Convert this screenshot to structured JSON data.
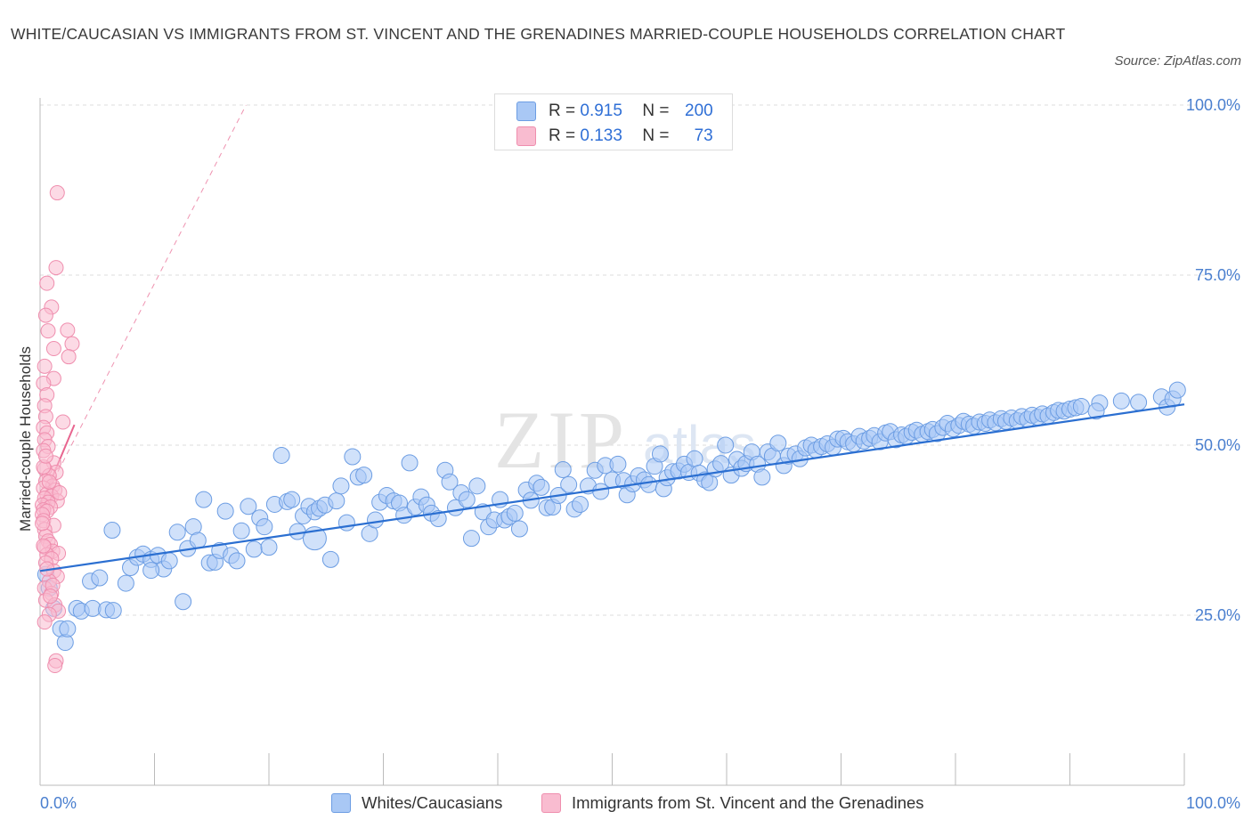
{
  "title": "WHITE/CAUCASIAN VS IMMIGRANTS FROM ST. VINCENT AND THE GRENADINES MARRIED-COUPLE HOUSEHOLDS CORRELATION CHART",
  "source": "Source: ZipAtlas.com",
  "watermark": {
    "main": "ZIP",
    "sub": "atlas"
  },
  "legend": {
    "rows": [
      {
        "r_label": "R = ",
        "r_value": "0.915",
        "n_label": "N = ",
        "n_value": "200"
      },
      {
        "r_label": "R = ",
        "r_value": "0.133",
        "n_label": "N = ",
        "n_value": "73"
      }
    ]
  },
  "bottom_legend": {
    "series1": "Whites/Caucasians",
    "series2": "Immigrants from St. Vincent and the Grenadines"
  },
  "colors": {
    "blue_fill": "#a9c8f5",
    "blue_stroke": "#6c9de3",
    "blue_line": "#2b6fd1",
    "pink_fill": "#f9bcd0",
    "pink_stroke": "#ef8eae",
    "pink_line": "#e8658f",
    "grid": "#dddddd",
    "tick_text": "#4a7fcf"
  },
  "chart_data": {
    "type": "scatter",
    "xlabel": "",
    "ylabel": "Married-couple Households",
    "x_tick_labels": [
      "0.0%",
      "100.0%"
    ],
    "y_tick_labels": [
      "25.0%",
      "50.0%",
      "75.0%",
      "100.0%"
    ],
    "y_ticks": [
      25,
      50,
      75,
      100
    ],
    "xlim": [
      0,
      100
    ],
    "ylim": [
      0,
      100
    ],
    "grid": true,
    "legend_position": "top-center",
    "series": [
      {
        "name": "Whites/Caucasians",
        "r": 0.915,
        "n": 200,
        "trend": {
          "x": [
            0,
            100
          ],
          "y": [
            31.5,
            56
          ]
        },
        "points": [
          [
            0.5,
            31
          ],
          [
            0.8,
            29
          ],
          [
            1.2,
            26
          ],
          [
            1.8,
            23
          ],
          [
            2.2,
            21
          ],
          [
            2.4,
            23
          ],
          [
            3.2,
            26
          ],
          [
            3.6,
            25.6
          ],
          [
            4.4,
            30
          ],
          [
            4.6,
            26
          ],
          [
            5.2,
            30.5
          ],
          [
            5.8,
            25.8
          ],
          [
            6.4,
            25.7
          ],
          [
            6.3,
            37.5
          ],
          [
            7.5,
            29.7
          ],
          [
            7.9,
            32
          ],
          [
            8.5,
            33.5
          ],
          [
            9.0,
            34
          ],
          [
            9.7,
            33.2
          ],
          [
            10.3,
            33.8
          ],
          [
            10.8,
            31.8
          ],
          [
            11.3,
            33
          ],
          [
            12.0,
            37.2
          ],
          [
            12.5,
            27
          ],
          [
            12.9,
            34.8
          ],
          [
            13.4,
            38
          ],
          [
            13.8,
            36
          ],
          [
            14.3,
            42
          ],
          [
            14.8,
            32.7
          ],
          [
            15.3,
            32.8
          ],
          [
            15.7,
            34.5
          ],
          [
            16.2,
            40.3
          ],
          [
            16.7,
            33.8
          ],
          [
            17.2,
            33
          ],
          [
            17.6,
            37.4
          ],
          [
            18.2,
            41
          ],
          [
            18.7,
            34.7
          ],
          [
            19.2,
            39.3
          ],
          [
            19.6,
            38
          ],
          [
            20.0,
            35
          ],
          [
            20.5,
            41.3
          ],
          [
            21.1,
            48.5
          ],
          [
            21.6,
            41.7
          ],
          [
            22.0,
            42
          ],
          [
            22.5,
            37.3
          ],
          [
            23.0,
            39.6
          ],
          [
            23.5,
            41
          ],
          [
            24.0,
            40.2
          ],
          [
            24.4,
            40.7
          ],
          [
            24.9,
            41.2
          ],
          [
            25.4,
            33.2
          ],
          [
            25.9,
            41.8
          ],
          [
            26.3,
            44
          ],
          [
            26.8,
            38.6
          ],
          [
            27.3,
            48.3
          ],
          [
            27.8,
            45.3
          ],
          [
            28.3,
            45.6
          ],
          [
            28.8,
            37
          ],
          [
            29.3,
            39
          ],
          [
            29.7,
            41.6
          ],
          [
            30.3,
            42.6
          ],
          [
            30.9,
            41.8
          ],
          [
            31.4,
            41.5
          ],
          [
            31.8,
            39.7
          ],
          [
            32.3,
            47.4
          ],
          [
            32.8,
            40.9
          ],
          [
            33.3,
            42.4
          ],
          [
            33.8,
            41.2
          ],
          [
            34.2,
            40
          ],
          [
            34.8,
            39.2
          ],
          [
            35.4,
            46.3
          ],
          [
            35.8,
            44.6
          ],
          [
            36.3,
            40.8
          ],
          [
            36.8,
            43
          ],
          [
            37.3,
            42
          ],
          [
            37.7,
            36.3
          ],
          [
            38.2,
            44
          ],
          [
            38.7,
            40.2
          ],
          [
            39.2,
            38
          ],
          [
            39.7,
            39
          ],
          [
            40.2,
            42
          ],
          [
            40.6,
            39
          ],
          [
            41.0,
            39.5
          ],
          [
            41.5,
            40
          ],
          [
            41.9,
            37.7
          ],
          [
            42.5,
            43.4
          ],
          [
            42.9,
            41.9
          ],
          [
            43.4,
            44.4
          ],
          [
            43.8,
            43.8
          ],
          [
            44.3,
            40.8
          ],
          [
            44.8,
            40.9
          ],
          [
            45.3,
            42.6
          ],
          [
            45.7,
            46.4
          ],
          [
            46.2,
            44.2
          ],
          [
            46.7,
            40.6
          ],
          [
            47.2,
            41.3
          ],
          [
            47.9,
            44
          ],
          [
            48.5,
            46.3
          ],
          [
            49.0,
            43.2
          ],
          [
            49.4,
            47
          ],
          [
            50.0,
            44.9
          ],
          [
            50.5,
            47.2
          ],
          [
            51.0,
            44.8
          ],
          [
            51.3,
            42.7
          ],
          [
            51.8,
            44.3
          ],
          [
            52.3,
            45.5
          ],
          [
            52.8,
            44.9
          ],
          [
            53.2,
            44.2
          ],
          [
            53.7,
            46.9
          ],
          [
            54.2,
            48.7
          ],
          [
            54.5,
            43.6
          ],
          [
            54.8,
            45.2
          ],
          [
            55.3,
            46.1
          ],
          [
            55.8,
            46.2
          ],
          [
            56.3,
            47.2
          ],
          [
            56.7,
            46
          ],
          [
            57.2,
            48
          ],
          [
            57.6,
            45.9
          ],
          [
            58.1,
            44.9
          ],
          [
            58.5,
            44.5
          ],
          [
            59.0,
            46.5
          ],
          [
            59.5,
            47.3
          ],
          [
            59.9,
            50
          ],
          [
            60.4,
            45.6
          ],
          [
            60.9,
            47.9
          ],
          [
            61.3,
            46.6
          ],
          [
            61.7,
            47.3
          ],
          [
            62.2,
            49
          ],
          [
            62.7,
            47.2
          ],
          [
            63.1,
            45.3
          ],
          [
            63.6,
            49
          ],
          [
            64.0,
            48.4
          ],
          [
            64.5,
            50.3
          ],
          [
            65.0,
            47
          ],
          [
            65.4,
            48.4
          ],
          [
            66.0,
            48.7
          ],
          [
            66.4,
            48
          ],
          [
            66.9,
            49.6
          ],
          [
            67.4,
            50
          ],
          [
            67.8,
            49.3
          ],
          [
            68.3,
            49.8
          ],
          [
            68.8,
            50.2
          ],
          [
            69.3,
            49.7
          ],
          [
            69.7,
            50.9
          ],
          [
            70.2,
            51
          ],
          [
            70.6,
            50.5
          ],
          [
            71.1,
            50.2
          ],
          [
            71.6,
            51.3
          ],
          [
            72.0,
            50.6
          ],
          [
            72.5,
            51
          ],
          [
            72.9,
            51.4
          ],
          [
            73.4,
            50.5
          ],
          [
            73.9,
            51.8
          ],
          [
            74.3,
            52
          ],
          [
            74.8,
            50.8
          ],
          [
            75.3,
            51.5
          ],
          [
            75.7,
            51.3
          ],
          [
            76.2,
            51.9
          ],
          [
            76.6,
            52.2
          ],
          [
            77.1,
            51.6
          ],
          [
            77.6,
            52
          ],
          [
            78.0,
            52.3
          ],
          [
            78.4,
            51.7
          ],
          [
            78.9,
            52.6
          ],
          [
            79.3,
            53.2
          ],
          [
            79.8,
            52.4
          ],
          [
            80.3,
            52.9
          ],
          [
            80.7,
            53.5
          ],
          [
            81.2,
            53.1
          ],
          [
            81.6,
            52.8
          ],
          [
            82.1,
            53.4
          ],
          [
            82.6,
            53.2
          ],
          [
            83.0,
            53.7
          ],
          [
            83.5,
            53.3
          ],
          [
            84.0,
            53.9
          ],
          [
            84.4,
            53.5
          ],
          [
            84.9,
            54
          ],
          [
            85.4,
            53.6
          ],
          [
            85.8,
            54.2
          ],
          [
            86.3,
            53.8
          ],
          [
            86.7,
            54.4
          ],
          [
            87.2,
            54.1
          ],
          [
            87.6,
            54.6
          ],
          [
            88.1,
            54.3
          ],
          [
            88.6,
            54.8
          ],
          [
            89.0,
            55.1
          ],
          [
            89.5,
            55
          ],
          [
            90.0,
            55.3
          ],
          [
            90.5,
            55.5
          ],
          [
            91.0,
            55.7
          ],
          [
            92.6,
            56.2
          ],
          [
            92.3,
            55
          ],
          [
            94.5,
            56.5
          ],
          [
            96.0,
            56.3
          ],
          [
            98.0,
            57.1
          ],
          [
            98.5,
            55.6
          ],
          [
            99.0,
            56.8
          ],
          [
            99.4,
            58.1
          ],
          [
            24.0,
            36.3
          ],
          [
            9.7,
            31.6
          ]
        ]
      },
      {
        "name": "Immigrants from St. Vincent and the Grenadines",
        "r": 0.133,
        "n": 73,
        "trend": {
          "x": [
            0,
            3.0
          ],
          "y": [
            41,
            53
          ]
        },
        "trend_extended": {
          "x": [
            0,
            18.0
          ],
          "y": [
            41,
            100
          ]
        },
        "points": [
          [
            1.5,
            87.1
          ],
          [
            1.4,
            76.1
          ],
          [
            0.6,
            73.8
          ],
          [
            1.0,
            70.3
          ],
          [
            0.5,
            69.1
          ],
          [
            0.7,
            66.8
          ],
          [
            2.4,
            66.9
          ],
          [
            1.2,
            64.2
          ],
          [
            2.8,
            64.9
          ],
          [
            2.5,
            63
          ],
          [
            0.4,
            61.6
          ],
          [
            1.2,
            59.8
          ],
          [
            0.3,
            59.1
          ],
          [
            0.6,
            57.4
          ],
          [
            0.4,
            55.8
          ],
          [
            0.5,
            54.2
          ],
          [
            2.0,
            53.4
          ],
          [
            0.3,
            52.6
          ],
          [
            0.6,
            51.8
          ],
          [
            0.4,
            50.8
          ],
          [
            0.7,
            49.8
          ],
          [
            0.3,
            49.2
          ],
          [
            1.2,
            47.4
          ],
          [
            1.4,
            46
          ],
          [
            0.4,
            46.5
          ],
          [
            0.8,
            45.5
          ],
          [
            0.5,
            44.7
          ],
          [
            1.1,
            44
          ],
          [
            0.3,
            43.7
          ],
          [
            1.3,
            43.4
          ],
          [
            0.6,
            42.8
          ],
          [
            1.0,
            42.5
          ],
          [
            0.4,
            42.2
          ],
          [
            1.5,
            41.8
          ],
          [
            0.7,
            41.6
          ],
          [
            0.2,
            41.2
          ],
          [
            0.9,
            40.9
          ],
          [
            0.3,
            40.5
          ],
          [
            0.6,
            40.3
          ],
          [
            0.2,
            39.8
          ],
          [
            0.3,
            38.9
          ],
          [
            1.2,
            38.2
          ],
          [
            0.4,
            37.6
          ],
          [
            0.5,
            36.6
          ],
          [
            0.7,
            35.9
          ],
          [
            0.9,
            35.4
          ],
          [
            0.4,
            35
          ],
          [
            1.1,
            34.4
          ],
          [
            1.6,
            34.1
          ],
          [
            0.6,
            33.9
          ],
          [
            1.0,
            33.3
          ],
          [
            0.5,
            32.7
          ],
          [
            1.2,
            31.5
          ],
          [
            1.5,
            30.7
          ],
          [
            0.8,
            30
          ],
          [
            0.4,
            29
          ],
          [
            1.0,
            28.2
          ],
          [
            0.5,
            27.2
          ],
          [
            1.3,
            26.5
          ],
          [
            1.6,
            25.6
          ],
          [
            0.8,
            25.1
          ],
          [
            0.4,
            24
          ],
          [
            1.4,
            18.3
          ],
          [
            1.3,
            17.6
          ],
          [
            0.2,
            38.5
          ],
          [
            0.3,
            46.8
          ],
          [
            0.5,
            48.4
          ],
          [
            0.8,
            44.6
          ],
          [
            1.7,
            43
          ],
          [
            0.3,
            35.2
          ],
          [
            0.6,
            31.8
          ],
          [
            1.1,
            29.4
          ],
          [
            0.9,
            27.8
          ]
        ]
      }
    ]
  }
}
